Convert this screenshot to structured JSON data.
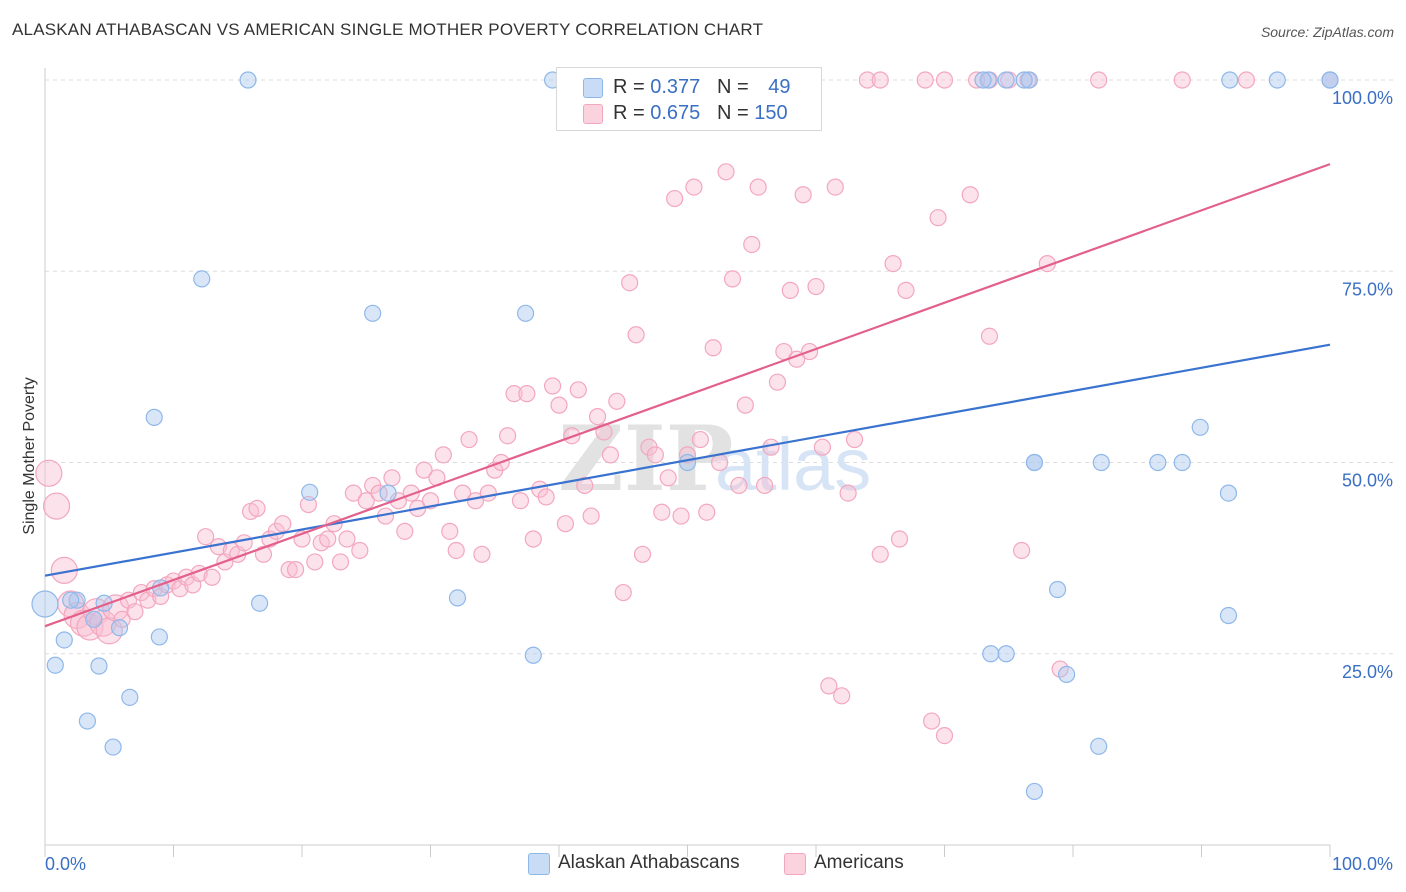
{
  "title": "ALASKAN ATHABASCAN VS AMERICAN SINGLE MOTHER POVERTY CORRELATION CHART",
  "source": "Source: ZipAtlas.com",
  "watermark": "ZIPatlas",
  "legend": {
    "r_label": "R =",
    "n_label": "N =",
    "rows": [
      {
        "r": "0.377",
        "n": "49",
        "color": "#8fb8ea"
      },
      {
        "r": "0.675",
        "n": "150",
        "color": "#f3a7bf"
      }
    ]
  },
  "bottom_legend": [
    "Alaskan Athabascans",
    "Americans"
  ],
  "chart_data": {
    "type": "scatter",
    "title": "ALASKAN ATHABASCAN VS AMERICAN SINGLE MOTHER POVERTY CORRELATION CHART",
    "xlabel": "",
    "ylabel": "Single Mother Poverty",
    "xlim": [
      0,
      100
    ],
    "ylim": [
      0,
      100
    ],
    "x_tick_labels": [
      "0.0%",
      "100.0%"
    ],
    "y_tick_labels": [
      "25.0%",
      "50.0%",
      "75.0%",
      "100.0%"
    ],
    "y_ticks": [
      25,
      50,
      75,
      100
    ],
    "grid": true,
    "legend_position": "top-center",
    "series": [
      {
        "name": "Alaskan Athabascans",
        "color": "#8fb8ea",
        "line_color": "#3a73cf",
        "r": 0.377,
        "n": 49,
        "trend": {
          "x0": 0,
          "y0": 35.2,
          "x1": 100,
          "y1": 65.4
        },
        "points": [
          [
            0.0,
            31.5
          ],
          [
            0.8,
            23.5
          ],
          [
            1.5,
            26.8
          ],
          [
            2.5,
            32.0
          ],
          [
            3.3,
            16.2
          ],
          [
            3.8,
            29.5
          ],
          [
            4.2,
            23.4
          ],
          [
            4.6,
            31.6
          ],
          [
            5.3,
            12.8
          ],
          [
            5.8,
            28.4
          ],
          [
            6.6,
            19.3
          ],
          [
            8.9,
            27.2
          ],
          [
            9.0,
            33.6
          ],
          [
            8.5,
            55.9
          ],
          [
            12.2,
            74.0
          ],
          [
            15.8,
            100
          ],
          [
            16.7,
            31.6
          ],
          [
            20.6,
            46.1
          ],
          [
            25.5,
            69.5
          ],
          [
            26.7,
            46.0
          ],
          [
            32.1,
            32.3
          ],
          [
            37.4,
            69.5
          ],
          [
            38.0,
            24.8
          ],
          [
            39.5,
            100
          ],
          [
            50.0,
            50.0
          ],
          [
            73.4,
            100
          ],
          [
            74.8,
            100
          ],
          [
            73.0,
            100
          ],
          [
            76.6,
            100
          ],
          [
            76.2,
            100
          ],
          [
            73.6,
            25.0
          ],
          [
            74.8,
            25.0
          ],
          [
            77.0,
            7.0
          ],
          [
            77.0,
            50.0
          ],
          [
            77.0,
            50.0
          ],
          [
            78.8,
            33.4
          ],
          [
            79.5,
            22.3
          ],
          [
            82.0,
            12.9
          ],
          [
            82.2,
            50.0
          ],
          [
            86.6,
            50.0
          ],
          [
            88.5,
            50.0
          ],
          [
            89.9,
            54.6
          ],
          [
            92.2,
            100
          ],
          [
            92.1,
            46.0
          ],
          [
            92.1,
            30.0
          ],
          [
            95.9,
            100
          ],
          [
            100.0,
            100
          ],
          [
            100.0,
            100
          ],
          [
            2.0,
            32.0
          ]
        ]
      },
      {
        "name": "Americans",
        "color": "#f3a7bf",
        "line_color": "#e3608b",
        "r": 0.675,
        "n": 150,
        "trend": {
          "x0": 0,
          "y0": 28.6,
          "x1": 100,
          "y1": 89.0
        },
        "points": [
          [
            0.3,
            48.6
          ],
          [
            0.9,
            44.3
          ],
          [
            1.5,
            35.9
          ],
          [
            2.0,
            31.5
          ],
          [
            2.5,
            30.0
          ],
          [
            3.0,
            29.0
          ],
          [
            3.5,
            28.5
          ],
          [
            4.0,
            30.5
          ],
          [
            4.5,
            29.0
          ],
          [
            5.0,
            28.0
          ],
          [
            5.5,
            31.0
          ],
          [
            6.0,
            29.5
          ],
          [
            6.5,
            32.0
          ],
          [
            7.0,
            30.5
          ],
          [
            7.5,
            33.0
          ],
          [
            8.0,
            32.0
          ],
          [
            8.5,
            33.5
          ],
          [
            9.0,
            32.5
          ],
          [
            9.5,
            34.0
          ],
          [
            10.0,
            34.5
          ],
          [
            10.5,
            33.5
          ],
          [
            11.0,
            35.0
          ],
          [
            11.5,
            34.0
          ],
          [
            12.0,
            35.5
          ],
          [
            12.5,
            40.3
          ],
          [
            13.0,
            35.0
          ],
          [
            13.5,
            39.0
          ],
          [
            14.0,
            37.0
          ],
          [
            14.5,
            38.5
          ],
          [
            15.0,
            38.0
          ],
          [
            15.5,
            39.5
          ],
          [
            16.0,
            43.6
          ],
          [
            16.5,
            44.0
          ],
          [
            17.0,
            38.0
          ],
          [
            17.5,
            40.0
          ],
          [
            18.0,
            41.0
          ],
          [
            18.5,
            42.0
          ],
          [
            19.0,
            36.0
          ],
          [
            19.5,
            36.0
          ],
          [
            20.0,
            40.0
          ],
          [
            20.5,
            44.5
          ],
          [
            21.0,
            37.0
          ],
          [
            21.5,
            39.5
          ],
          [
            22.0,
            40.0
          ],
          [
            22.5,
            42.0
          ],
          [
            23.0,
            37.0
          ],
          [
            23.5,
            40.0
          ],
          [
            24.0,
            46.0
          ],
          [
            24.5,
            38.5
          ],
          [
            25.0,
            45.0
          ],
          [
            25.5,
            47.0
          ],
          [
            26.0,
            46.0
          ],
          [
            26.5,
            43.0
          ],
          [
            27.0,
            48.0
          ],
          [
            27.5,
            45.0
          ],
          [
            28.0,
            41.0
          ],
          [
            28.5,
            46.0
          ],
          [
            29.0,
            44.0
          ],
          [
            29.5,
            49.0
          ],
          [
            30.0,
            45.0
          ],
          [
            30.5,
            48.0
          ],
          [
            31.0,
            51.0
          ],
          [
            31.5,
            41.0
          ],
          [
            32.0,
            38.5
          ],
          [
            32.5,
            46.0
          ],
          [
            33.0,
            53.0
          ],
          [
            33.5,
            45.0
          ],
          [
            34.0,
            38.0
          ],
          [
            34.5,
            46.0
          ],
          [
            35.0,
            49.0
          ],
          [
            35.5,
            50.0
          ],
          [
            36.0,
            53.5
          ],
          [
            36.5,
            59.0
          ],
          [
            37.0,
            45.0
          ],
          [
            37.5,
            59.0
          ],
          [
            38.0,
            40.0
          ],
          [
            38.5,
            46.5
          ],
          [
            39.0,
            45.5
          ],
          [
            39.5,
            60.0
          ],
          [
            40.0,
            57.5
          ],
          [
            40.5,
            42.0
          ],
          [
            41.0,
            53.5
          ],
          [
            41.5,
            59.5
          ],
          [
            42.0,
            47.0
          ],
          [
            42.5,
            43.0
          ],
          [
            43.0,
            56.0
          ],
          [
            43.5,
            54.0
          ],
          [
            44.0,
            51.0
          ],
          [
            44.5,
            58.0
          ],
          [
            45.0,
            33.0
          ],
          [
            45.5,
            73.5
          ],
          [
            46.0,
            66.7
          ],
          [
            46.5,
            38.0
          ],
          [
            47.0,
            52.0
          ],
          [
            47.5,
            51.0
          ],
          [
            48.0,
            43.5
          ],
          [
            48.5,
            48.0
          ],
          [
            49.0,
            84.5
          ],
          [
            49.5,
            43.0
          ],
          [
            50.0,
            51.0
          ],
          [
            50.5,
            86.0
          ],
          [
            51.0,
            53.0
          ],
          [
            51.5,
            43.5
          ],
          [
            52.0,
            65.0
          ],
          [
            52.5,
            50.0
          ],
          [
            53.0,
            88.0
          ],
          [
            53.5,
            74.0
          ],
          [
            54.0,
            47.0
          ],
          [
            54.5,
            57.5
          ],
          [
            55.0,
            78.5
          ],
          [
            55.5,
            86.0
          ],
          [
            56.0,
            47.0
          ],
          [
            56.5,
            52.0
          ],
          [
            57.0,
            60.5
          ],
          [
            57.5,
            64.5
          ],
          [
            58.0,
            72.5
          ],
          [
            58.5,
            63.5
          ],
          [
            59.0,
            85.0
          ],
          [
            59.5,
            64.5
          ],
          [
            60.0,
            73.0
          ],
          [
            60.5,
            52.0
          ],
          [
            61.0,
            20.8
          ],
          [
            61.5,
            86.0
          ],
          [
            62.0,
            19.5
          ],
          [
            62.5,
            46.0
          ],
          [
            63.0,
            53.0
          ],
          [
            65.0,
            38.0
          ],
          [
            66.0,
            76.0
          ],
          [
            66.5,
            40.0
          ],
          [
            67.0,
            72.5
          ],
          [
            69.0,
            16.2
          ],
          [
            69.5,
            82.0
          ],
          [
            70.0,
            14.3
          ],
          [
            72.0,
            85.0
          ],
          [
            73.5,
            66.5
          ],
          [
            76.0,
            38.5
          ],
          [
            78.0,
            76.0
          ],
          [
            79.0,
            23.0
          ],
          [
            64.0,
            100
          ],
          [
            65.0,
            100
          ],
          [
            68.5,
            100
          ],
          [
            70.0,
            100
          ],
          [
            72.5,
            100
          ],
          [
            73.5,
            100
          ],
          [
            75.0,
            100
          ],
          [
            76.5,
            100
          ],
          [
            82.0,
            100
          ],
          [
            88.5,
            100
          ],
          [
            93.5,
            100
          ],
          [
            55.0,
            100
          ],
          [
            58.0,
            100
          ],
          [
            100.0,
            100
          ]
        ]
      }
    ]
  }
}
